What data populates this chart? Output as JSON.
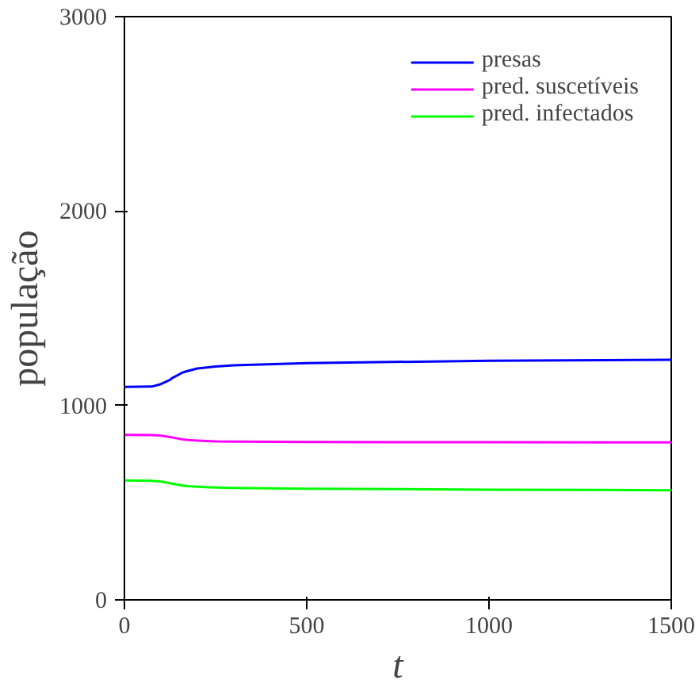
{
  "chart_data": {
    "type": "line",
    "xlabel": "t",
    "ylabel": "população",
    "x": [
      0,
      75,
      100,
      125,
      130,
      160,
      175,
      200,
      250,
      300,
      500,
      1000,
      1500
    ],
    "series": [
      {
        "name": "presas",
        "color": "#0000ff",
        "values": [
          1095,
          1097,
          1110,
          1132,
          1140,
          1170,
          1178,
          1190,
          1200,
          1207,
          1218,
          1230,
          1235
        ]
      },
      {
        "name": "pred. suscetíveis",
        "color": "#ff00ff",
        "values": [
          849,
          848,
          845,
          838,
          836,
          825,
          822,
          819,
          815,
          814,
          812,
          811,
          810
        ]
      },
      {
        "name": "pred. infectados",
        "color": "#00ff00",
        "values": [
          614,
          612,
          608,
          600,
          598,
          588,
          585,
          582,
          578,
          576,
          572,
          567,
          564
        ]
      }
    ],
    "xlim": [
      0,
      1500
    ],
    "ylim": [
      0,
      3000
    ],
    "xticks": [
      0,
      500,
      1000,
      1500
    ],
    "yticks": [
      0,
      1000,
      2000,
      3000
    ],
    "grid": false,
    "legend": "top right",
    "marker": "none",
    "line_style": "solid"
  }
}
